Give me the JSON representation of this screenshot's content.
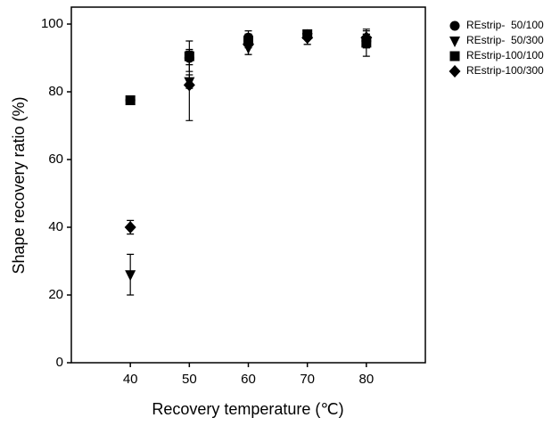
{
  "chart_data": {
    "type": "scatter",
    "xlabel": "Recovery temperature (℃)",
    "ylabel": "Shape recovery ratio (%)",
    "x": [
      40,
      50,
      60,
      70,
      80
    ],
    "xlim": [
      30,
      90
    ],
    "xticks": [
      40,
      50,
      60,
      70,
      80
    ],
    "ylim": [
      0,
      105
    ],
    "yticks": [
      0,
      20,
      40,
      60,
      80,
      100
    ],
    "legend": "outside-right",
    "series": [
      {
        "name": "REstrip-  50/100",
        "color": "#000000",
        "marker": "circle",
        "values": [
          77.5,
          90,
          96,
          97,
          95
        ],
        "errors": [
          1,
          2,
          2,
          1,
          2
        ]
      },
      {
        "name": "REstrip-  50/300",
        "color": "#000000",
        "marker": "triangle-down",
        "values": [
          26,
          83,
          93,
          96,
          95
        ],
        "errors": [
          6,
          2,
          2,
          2,
          2
        ]
      },
      {
        "name": "REstrip-100/100",
        "color": "#000000",
        "marker": "square",
        "values": [
          77.5,
          90.5,
          95,
          97,
          94.5
        ],
        "errors": [
          1,
          4.5,
          2,
          1,
          4
        ]
      },
      {
        "name": "REstrip-100/300",
        "color": "#000000",
        "marker": "diamond",
        "values": [
          40,
          82,
          94,
          96,
          96
        ],
        "errors": [
          2,
          10.5,
          3,
          2,
          2
        ]
      }
    ]
  }
}
